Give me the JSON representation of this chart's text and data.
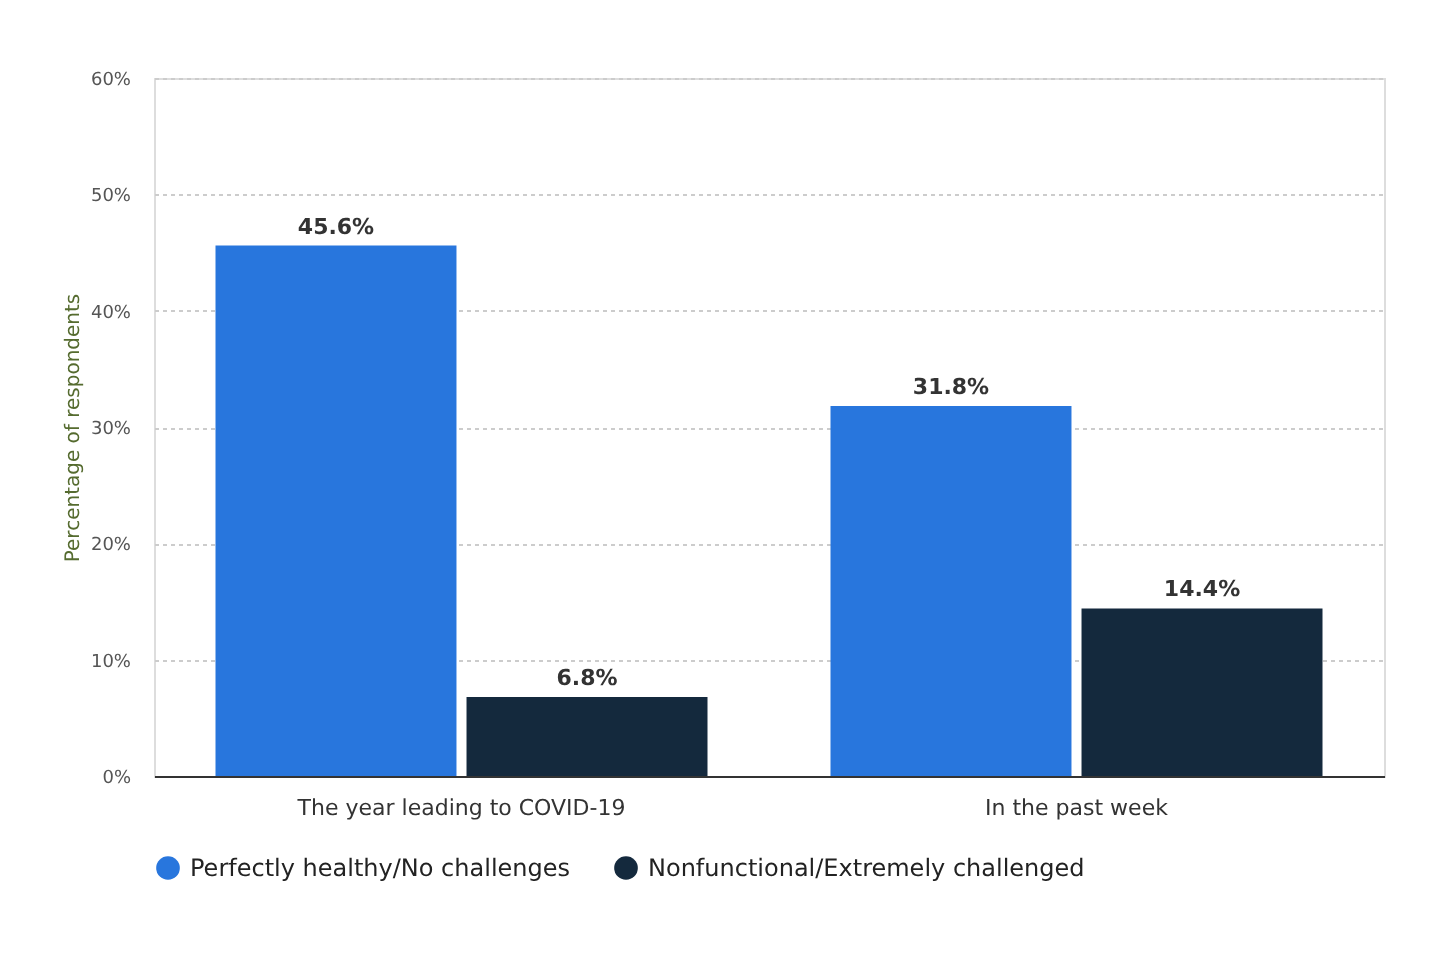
{
  "chart_data": {
    "type": "bar",
    "ylabel": "Percentage of respondents",
    "categories": [
      "The year leading to COVID-19",
      "In the past week"
    ],
    "series": [
      {
        "name": "Perfectly healthy/No challenges",
        "color": "#2876dd",
        "values": [
          45.6,
          31.8
        ],
        "value_labels": [
          "45.6%",
          "31.8%"
        ]
      },
      {
        "name": "Nonfunctional/Extremely challenged",
        "color": "#14293d",
        "values": [
          6.8,
          14.4
        ],
        "value_labels": [
          "6.8%",
          "14.4%"
        ]
      }
    ],
    "ylim": [
      0,
      60
    ],
    "yticks": [
      {
        "value": 0,
        "label": "0%"
      },
      {
        "value": 10,
        "label": "10%"
      },
      {
        "value": 20,
        "label": "20%"
      },
      {
        "value": 30,
        "label": "30%"
      },
      {
        "value": 40,
        "label": "40%"
      },
      {
        "value": 50,
        "label": "50%"
      },
      {
        "value": 60,
        "label": "60%"
      }
    ],
    "grid": "y",
    "legend": "bottom"
  }
}
